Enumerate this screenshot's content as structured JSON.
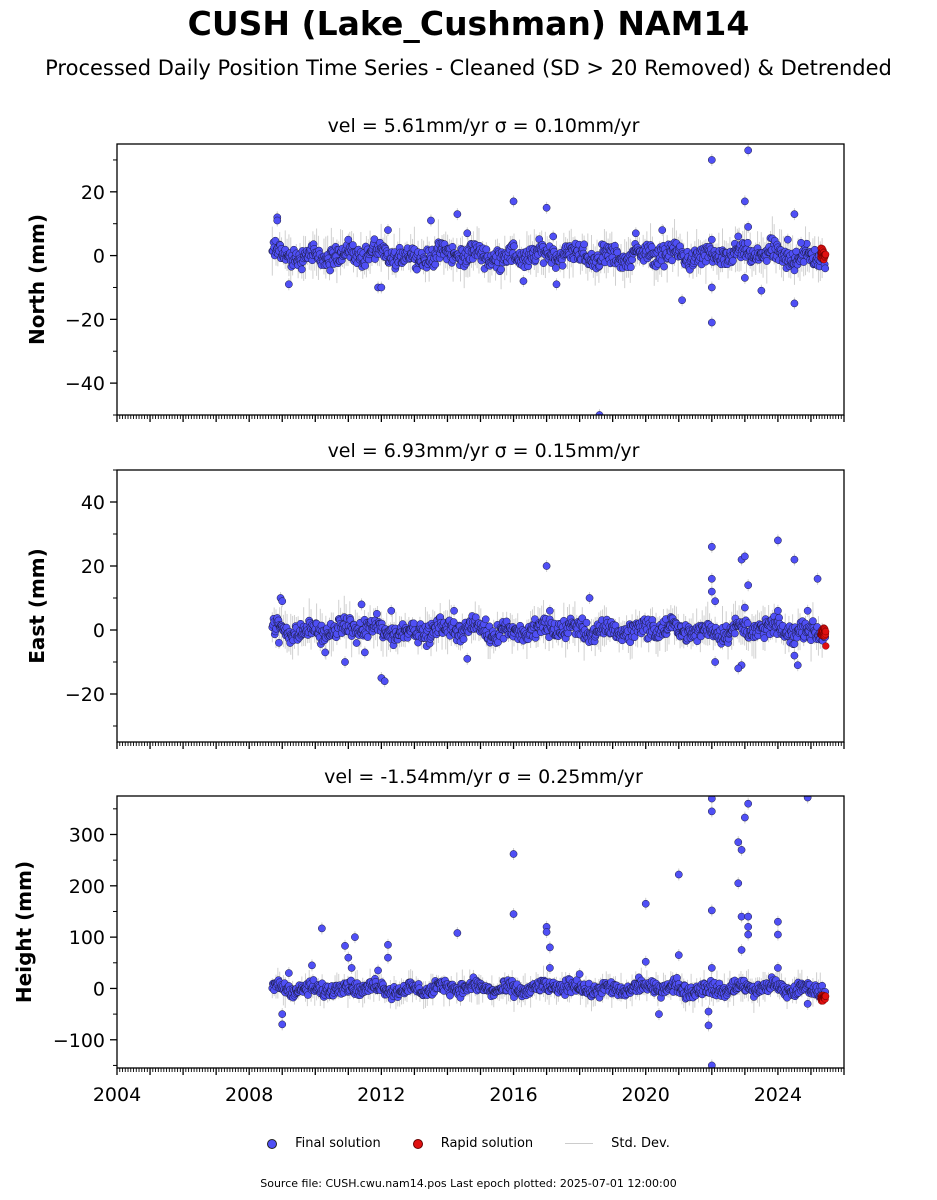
{
  "title": "CUSH (Lake_Cushman) NAM14",
  "subtitle": "Processed Daily Position Time Series - Cleaned (SD > 20 Removed) & Detrended",
  "footer": "Source file: CUSH.cwu.nam14.pos  Last epoch plotted: 2025-07-01 12:00:00",
  "legend": {
    "final": "Final solution",
    "rapid": "Rapid solution",
    "sd": "Std. Dev."
  },
  "colors": {
    "final": "#4f4ff5",
    "rapid": "#e01010",
    "sd": "#bdbdbd"
  },
  "chart_data": [
    {
      "type": "scatter",
      "title": "vel = 5.61mm/yr   σ = 0.10mm/yr",
      "ylabel": "North (mm)",
      "xlim": [
        2004.0,
        2026.0
      ],
      "ylim": [
        -50,
        35
      ],
      "yticks": [
        -40,
        -20,
        0,
        20
      ],
      "ytick_labels": [
        "−40",
        "−20",
        "0",
        "20"
      ],
      "baseline": {
        "x_start": 2008.7,
        "x_end": 2025.45,
        "spread": 2.2
      },
      "outliers": [
        {
          "x": 2008.85,
          "y": 12
        },
        {
          "x": 2008.85,
          "y": 11
        },
        {
          "x": 2009.2,
          "y": -9
        },
        {
          "x": 2011.0,
          "y": 5
        },
        {
          "x": 2011.9,
          "y": -10
        },
        {
          "x": 2012.0,
          "y": -10
        },
        {
          "x": 2012.2,
          "y": 8
        },
        {
          "x": 2013.5,
          "y": 11
        },
        {
          "x": 2014.3,
          "y": 13
        },
        {
          "x": 2014.6,
          "y": 7
        },
        {
          "x": 2016.0,
          "y": 17
        },
        {
          "x": 2016.3,
          "y": -8
        },
        {
          "x": 2017.0,
          "y": 15
        },
        {
          "x": 2017.2,
          "y": 6
        },
        {
          "x": 2017.3,
          "y": -9
        },
        {
          "x": 2018.6,
          "y": -50
        },
        {
          "x": 2019.7,
          "y": 7
        },
        {
          "x": 2020.5,
          "y": 8
        },
        {
          "x": 2021.1,
          "y": -14
        },
        {
          "x": 2022.0,
          "y": 30
        },
        {
          "x": 2022.0,
          "y": -21
        },
        {
          "x": 2022.0,
          "y": 5
        },
        {
          "x": 2022.0,
          "y": -10
        },
        {
          "x": 2022.8,
          "y": 6
        },
        {
          "x": 2023.0,
          "y": 17
        },
        {
          "x": 2023.1,
          "y": 33
        },
        {
          "x": 2023.1,
          "y": 9
        },
        {
          "x": 2023.0,
          "y": -7
        },
        {
          "x": 2023.5,
          "y": -11
        },
        {
          "x": 2024.3,
          "y": 5
        },
        {
          "x": 2024.5,
          "y": 13
        },
        {
          "x": 2024.5,
          "y": -15
        },
        {
          "x": 2024.7,
          "y": 4
        }
      ],
      "rapid": {
        "x_start": 2025.3,
        "x_end": 2025.45,
        "y_center": 0.5,
        "spread": 1.5
      }
    },
    {
      "type": "scatter",
      "title": "vel = 6.93mm/yr   σ = 0.15mm/yr",
      "ylabel": "East (mm)",
      "xlim": [
        2004.0,
        2026.0
      ],
      "ylim": [
        -35,
        50
      ],
      "yticks": [
        -20,
        0,
        20,
        40
      ],
      "ytick_labels": [
        "−20",
        "0",
        "20",
        "40"
      ],
      "baseline": {
        "x_start": 2008.7,
        "x_end": 2025.45,
        "spread": 2.0
      },
      "outliers": [
        {
          "x": 2008.95,
          "y": 10
        },
        {
          "x": 2009.0,
          "y": 9
        },
        {
          "x": 2008.9,
          "y": -4
        },
        {
          "x": 2010.3,
          "y": -7
        },
        {
          "x": 2010.9,
          "y": -10
        },
        {
          "x": 2011.4,
          "y": 8
        },
        {
          "x": 2011.5,
          "y": -7
        },
        {
          "x": 2012.0,
          "y": -15
        },
        {
          "x": 2012.1,
          "y": -16
        },
        {
          "x": 2012.3,
          "y": 6
        },
        {
          "x": 2014.2,
          "y": 6
        },
        {
          "x": 2014.6,
          "y": -9
        },
        {
          "x": 2017.0,
          "y": 20
        },
        {
          "x": 2017.1,
          "y": 6
        },
        {
          "x": 2018.3,
          "y": 10
        },
        {
          "x": 2022.0,
          "y": 26
        },
        {
          "x": 2022.0,
          "y": 16
        },
        {
          "x": 2022.0,
          "y": 12
        },
        {
          "x": 2022.1,
          "y": 9
        },
        {
          "x": 2022.1,
          "y": -10
        },
        {
          "x": 2022.9,
          "y": 22
        },
        {
          "x": 2023.0,
          "y": 23
        },
        {
          "x": 2023.1,
          "y": 14
        },
        {
          "x": 2023.0,
          "y": 7
        },
        {
          "x": 2022.9,
          "y": -11
        },
        {
          "x": 2022.8,
          "y": -12
        },
        {
          "x": 2024.0,
          "y": 6
        },
        {
          "x": 2024.0,
          "y": 28
        },
        {
          "x": 2024.5,
          "y": 22
        },
        {
          "x": 2024.5,
          "y": -8
        },
        {
          "x": 2024.6,
          "y": -11
        },
        {
          "x": 2024.9,
          "y": 6
        },
        {
          "x": 2025.2,
          "y": 16
        }
      ],
      "rapid": {
        "x_start": 2025.3,
        "x_end": 2025.45,
        "y_center": -1,
        "spread": 1.2,
        "extra": [
          {
            "x": 2025.45,
            "y": -5
          }
        ]
      }
    },
    {
      "type": "scatter",
      "title": "vel = -1.54mm/yr   σ = 0.25mm/yr",
      "ylabel": "Height (mm)",
      "xlim": [
        2004.0,
        2026.0
      ],
      "ylim": [
        -155,
        375
      ],
      "yticks": [
        -100,
        0,
        100,
        200,
        300
      ],
      "ytick_labels": [
        "−100",
        "0",
        "100",
        "200",
        "300"
      ],
      "xticks": [
        2004,
        2008,
        2012,
        2016,
        2020,
        2024
      ],
      "xtick_labels": [
        "2004",
        "2008",
        "2012",
        "2016",
        "2020",
        "2024"
      ],
      "baseline": {
        "x_start": 2008.7,
        "x_end": 2025.45,
        "spread": 9
      },
      "outliers": [
        {
          "x": 2009.0,
          "y": -70
        },
        {
          "x": 2009.0,
          "y": -50
        },
        {
          "x": 2009.2,
          "y": 30
        },
        {
          "x": 2009.9,
          "y": 45
        },
        {
          "x": 2010.2,
          "y": 117
        },
        {
          "x": 2010.9,
          "y": 83
        },
        {
          "x": 2011.0,
          "y": 60
        },
        {
          "x": 2011.1,
          "y": 40
        },
        {
          "x": 2011.2,
          "y": 100
        },
        {
          "x": 2011.9,
          "y": 35
        },
        {
          "x": 2012.2,
          "y": 85
        },
        {
          "x": 2012.2,
          "y": 60
        },
        {
          "x": 2014.3,
          "y": 108
        },
        {
          "x": 2016.0,
          "y": 262
        },
        {
          "x": 2016.0,
          "y": 145
        },
        {
          "x": 2017.0,
          "y": 120
        },
        {
          "x": 2017.0,
          "y": 110
        },
        {
          "x": 2017.1,
          "y": 80
        },
        {
          "x": 2017.1,
          "y": 40
        },
        {
          "x": 2018.0,
          "y": 28
        },
        {
          "x": 2020.0,
          "y": 165
        },
        {
          "x": 2020.0,
          "y": 52
        },
        {
          "x": 2020.4,
          "y": -50
        },
        {
          "x": 2021.0,
          "y": 222
        },
        {
          "x": 2021.0,
          "y": 65
        },
        {
          "x": 2022.0,
          "y": 370
        },
        {
          "x": 2022.0,
          "y": 345
        },
        {
          "x": 2022.0,
          "y": 152
        },
        {
          "x": 2022.0,
          "y": 40
        },
        {
          "x": 2021.9,
          "y": -72
        },
        {
          "x": 2021.9,
          "y": -45
        },
        {
          "x": 2022.0,
          "y": -150
        },
        {
          "x": 2022.8,
          "y": 285
        },
        {
          "x": 2022.8,
          "y": 205
        },
        {
          "x": 2022.9,
          "y": 270
        },
        {
          "x": 2023.0,
          "y": 333
        },
        {
          "x": 2023.1,
          "y": 360
        },
        {
          "x": 2022.9,
          "y": 140
        },
        {
          "x": 2023.1,
          "y": 140
        },
        {
          "x": 2023.1,
          "y": 120
        },
        {
          "x": 2023.1,
          "y": 105
        },
        {
          "x": 2022.9,
          "y": 75
        },
        {
          "x": 2024.0,
          "y": 130
        },
        {
          "x": 2024.0,
          "y": 105
        },
        {
          "x": 2024.0,
          "y": 40
        },
        {
          "x": 2024.9,
          "y": 372
        },
        {
          "x": 2024.9,
          "y": -30
        }
      ],
      "rapid": {
        "x_start": 2025.3,
        "x_end": 2025.45,
        "y_center": -18,
        "spread": 5
      }
    }
  ]
}
